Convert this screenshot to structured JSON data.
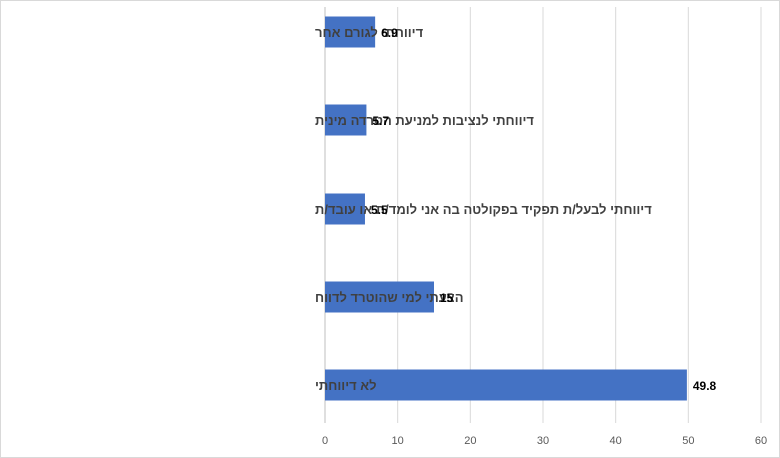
{
  "chart_data": {
    "type": "bar",
    "orientation": "horizontal",
    "categories": [
      "דיווחתי לגורם אחר",
      "דיווחתי לנציבות למניעת הטרדה מינית",
      "דיווחתי לבעל/ת תפקיד  בפקולטה בה אני לומד/ת או עובד/ת",
      "הצעתי למי שהוטרד לדווח",
      "לא דיווחתי"
    ],
    "values": [
      6.9,
      5.7,
      5.5,
      15,
      49.8
    ],
    "xlim": [
      0,
      60
    ],
    "xticks": [
      0,
      10,
      20,
      30,
      40,
      50,
      60
    ],
    "grid": "vertical",
    "bar_color": "#4472C4",
    "data_labels": true,
    "title": "",
    "xlabel": "",
    "ylabel": ""
  }
}
